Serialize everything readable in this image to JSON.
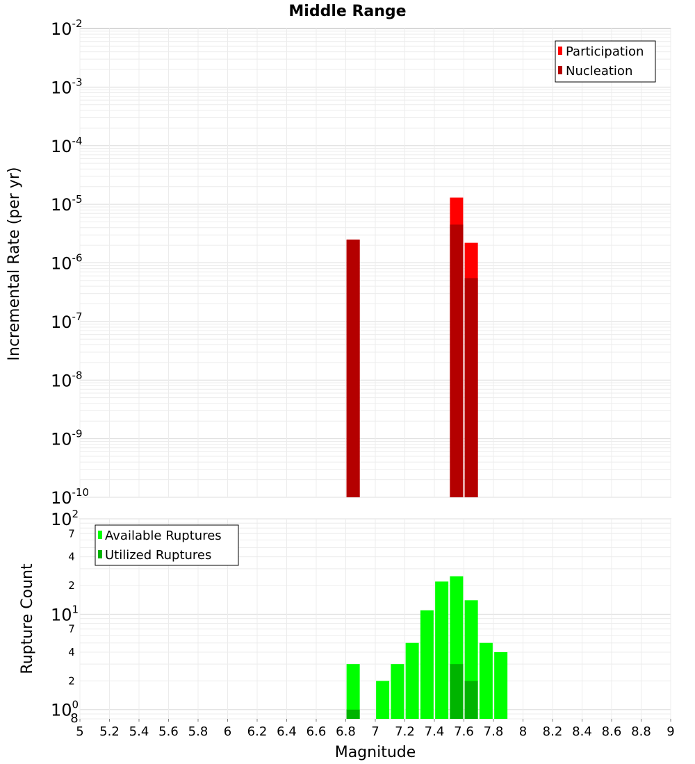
{
  "chart_data": [
    {
      "type": "bar",
      "title": "Middle Range",
      "xlabel": "Magnitude",
      "ylabel": "Incremental Rate (per yr)",
      "yscale": "log",
      "ylim": [
        1e-10,
        0.01
      ],
      "xlim": [
        5,
        9
      ],
      "legend_position": "top-right",
      "series": [
        {
          "name": "Participation",
          "color": "#ff0000",
          "points": [
            {
              "x": 6.85,
              "y": 2.5e-06
            },
            {
              "x": 7.55,
              "y": 1.3e-05
            },
            {
              "x": 7.65,
              "y": 2.2e-06
            }
          ]
        },
        {
          "name": "Nucleation",
          "color": "#b40000",
          "points": [
            {
              "x": 6.85,
              "y": 2.5e-06
            },
            {
              "x": 7.55,
              "y": 4.5e-06
            },
            {
              "x": 7.65,
              "y": 5.5e-07
            }
          ]
        }
      ]
    },
    {
      "type": "bar",
      "xlabel": "Magnitude",
      "ylabel": "Rupture Count",
      "yscale": "log",
      "ylim": [
        0.8,
        100
      ],
      "xlim": [
        5,
        9
      ],
      "legend_position": "top-left",
      "series": [
        {
          "name": "Available Ruptures",
          "color": "#00ff00",
          "points": [
            {
              "x": 6.85,
              "y": 3
            },
            {
              "x": 7.05,
              "y": 2
            },
            {
              "x": 7.15,
              "y": 3
            },
            {
              "x": 7.25,
              "y": 5
            },
            {
              "x": 7.35,
              "y": 11
            },
            {
              "x": 7.45,
              "y": 22
            },
            {
              "x": 7.55,
              "y": 25
            },
            {
              "x": 7.65,
              "y": 14
            },
            {
              "x": 7.75,
              "y": 5
            },
            {
              "x": 7.85,
              "y": 4
            }
          ]
        },
        {
          "name": "Utilized Ruptures",
          "color": "#00b400",
          "points": [
            {
              "x": 6.85,
              "y": 1
            },
            {
              "x": 7.55,
              "y": 3
            },
            {
              "x": 7.65,
              "y": 2
            }
          ]
        }
      ]
    }
  ],
  "x_ticks": [
    "5",
    "5.2",
    "5.4",
    "5.6",
    "5.8",
    "6",
    "6.2",
    "6.4",
    "6.6",
    "6.8",
    "7",
    "7.2",
    "7.4",
    "7.6",
    "7.8",
    "8",
    "8.2",
    "8.4",
    "8.6",
    "8.8",
    "9"
  ],
  "top_y_ticks": [
    {
      "base": "10",
      "exp": "-2"
    },
    {
      "base": "10",
      "exp": "-3"
    },
    {
      "base": "10",
      "exp": "-4"
    },
    {
      "base": "10",
      "exp": "-5"
    },
    {
      "base": "10",
      "exp": "-6"
    },
    {
      "base": "10",
      "exp": "-7"
    },
    {
      "base": "10",
      "exp": "-8"
    },
    {
      "base": "10",
      "exp": "-9"
    },
    {
      "base": "10",
      "exp": "-10"
    }
  ],
  "bottom_y_major": [
    {
      "base": "10",
      "exp": "2"
    },
    {
      "base": "10",
      "exp": "1"
    },
    {
      "base": "10",
      "exp": "0"
    }
  ],
  "bottom_y_minor": [
    "7",
    "4",
    "2",
    "7",
    "4",
    "2",
    "8"
  ]
}
